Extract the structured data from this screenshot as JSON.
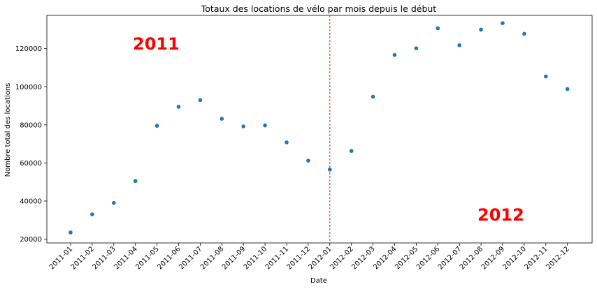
{
  "chart_data": {
    "type": "scatter",
    "title": "Totaux des locations de vélo par mois depuis le début",
    "xlabel": "Date",
    "ylabel": "Nombre total des locations",
    "categories": [
      "2011-01",
      "2011-02",
      "2011-03",
      "2011-04",
      "2011-05",
      "2011-06",
      "2011-07",
      "2011-08",
      "2011-09",
      "2011-10",
      "2011-11",
      "2011-12",
      "2012-01",
      "2012-02",
      "2012-03",
      "2012-04",
      "2012-05",
      "2012-06",
      "2012-07",
      "2012-08",
      "2012-09",
      "2012-10",
      "2012-11",
      "2012-12"
    ],
    "values": [
      23500,
      33000,
      39000,
      50500,
      79500,
      89500,
      93000,
      83200,
      79200,
      79700,
      70800,
      61200,
      56500,
      66300,
      94800,
      116700,
      120200,
      130700,
      121800,
      130000,
      133400,
      127800,
      105400,
      98800
    ],
    "ylim": [
      18000,
      137500
    ],
    "yticks": [
      20000,
      40000,
      60000,
      80000,
      100000,
      120000
    ],
    "yticklabels": [
      "20000",
      "40000",
      "60000",
      "80000",
      "100000",
      "120000"
    ],
    "grid": false,
    "point_color": "#1f77b4",
    "vline": {
      "category": "2012-01",
      "color": "#d62728",
      "style": "dashed"
    },
    "annotations": [
      {
        "text": "2011",
        "color": "#ff0000"
      },
      {
        "text": "2012",
        "color": "#ff0000"
      }
    ]
  }
}
